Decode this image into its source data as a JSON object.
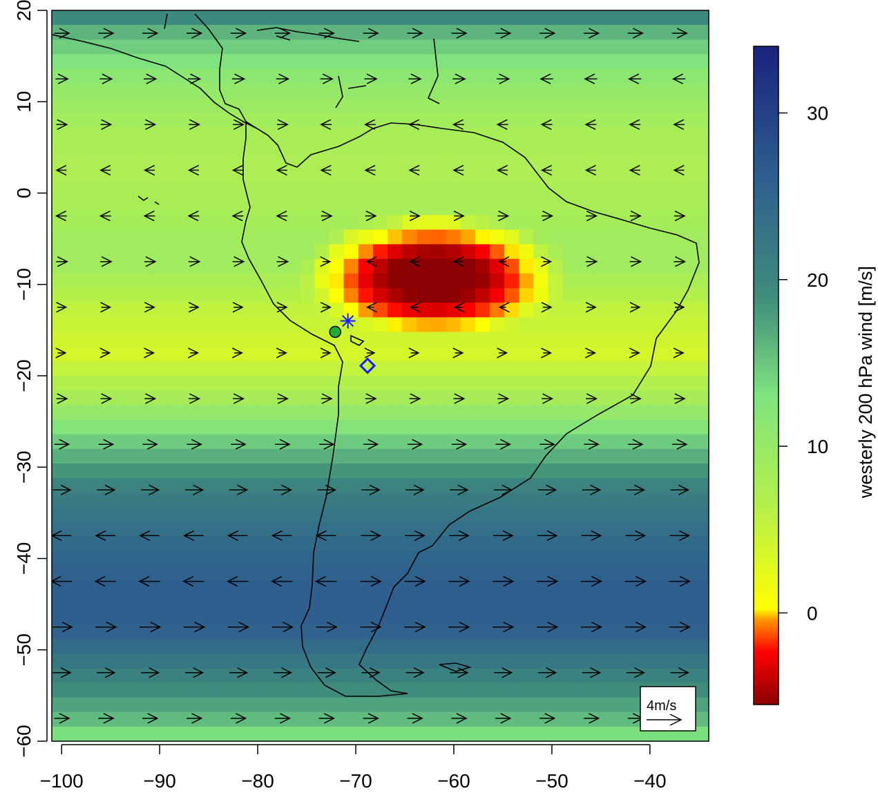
{
  "map": {
    "type": "heatmap",
    "lon_range": [
      -101,
      -34
    ],
    "lat_range": [
      -60,
      20
    ],
    "x_ticks": [
      -100,
      -90,
      -80,
      -70,
      -60,
      -50,
      -40
    ],
    "x_tick_labels": [
      "−100",
      "−90",
      "−80",
      "−70",
      "−60",
      "−50",
      "−40"
    ],
    "y_ticks": [
      20,
      10,
      0,
      -10,
      -20,
      -30,
      -40,
      -50,
      -60
    ],
    "y_tick_labels": [
      "20",
      "10",
      "0",
      "−10",
      "−20",
      "−30",
      "−40",
      "−50",
      "−60"
    ],
    "value_unit": "m/s",
    "zonal_wind_profile_by_latitude": [
      {
        "lat": 20,
        "u": 22
      },
      {
        "lat": 17.5,
        "u": 17
      },
      {
        "lat": 12.5,
        "u": 12
      },
      {
        "lat": 7.5,
        "u": 9
      },
      {
        "lat": 2.5,
        "u": 8
      },
      {
        "lat": -2.5,
        "u": 9
      },
      {
        "lat": -7.5,
        "u": 10
      },
      {
        "lat": -12.5,
        "u": 6
      },
      {
        "lat": -17.5,
        "u": 4
      },
      {
        "lat": -22.5,
        "u": 9
      },
      {
        "lat": -27.5,
        "u": 16
      },
      {
        "lat": -32.5,
        "u": 22
      },
      {
        "lat": -37.5,
        "u": 25
      },
      {
        "lat": -42.5,
        "u": 27
      },
      {
        "lat": -47.5,
        "u": 27
      },
      {
        "lat": -52.5,
        "u": 22
      },
      {
        "lat": -57.5,
        "u": 17
      },
      {
        "lat": -60,
        "u": 13
      }
    ],
    "easterly_core": {
      "center_lon": -62,
      "center_lat": -9,
      "min_u": -5
    },
    "markers": [
      {
        "name": "green-circle-site",
        "lon": -72.1,
        "lat": -15.2,
        "color": "#22aa33"
      },
      {
        "name": "blue-asterisk-site",
        "lon": -70.8,
        "lat": -14.0,
        "color": "#1a1aff"
      },
      {
        "name": "blue-diamond-site",
        "lon": -68.8,
        "lat": -18.9,
        "color": "#1a1aff"
      }
    ],
    "reference_arrow_label": "4m/s"
  },
  "colorbar": {
    "label": "westerly 200 hPa wind [m/s]",
    "ticks": [
      30,
      20,
      10,
      0
    ],
    "tick_labels": [
      "30",
      "20",
      "10",
      "0"
    ],
    "range": [
      -5.5,
      34
    ],
    "colors": [
      "#8b0000",
      "#ff0000",
      "#ff9a00",
      "#ffff00",
      "#b5f04a",
      "#7fe37f",
      "#3f8c7c",
      "#2e5f8e",
      "#1a237e"
    ]
  }
}
